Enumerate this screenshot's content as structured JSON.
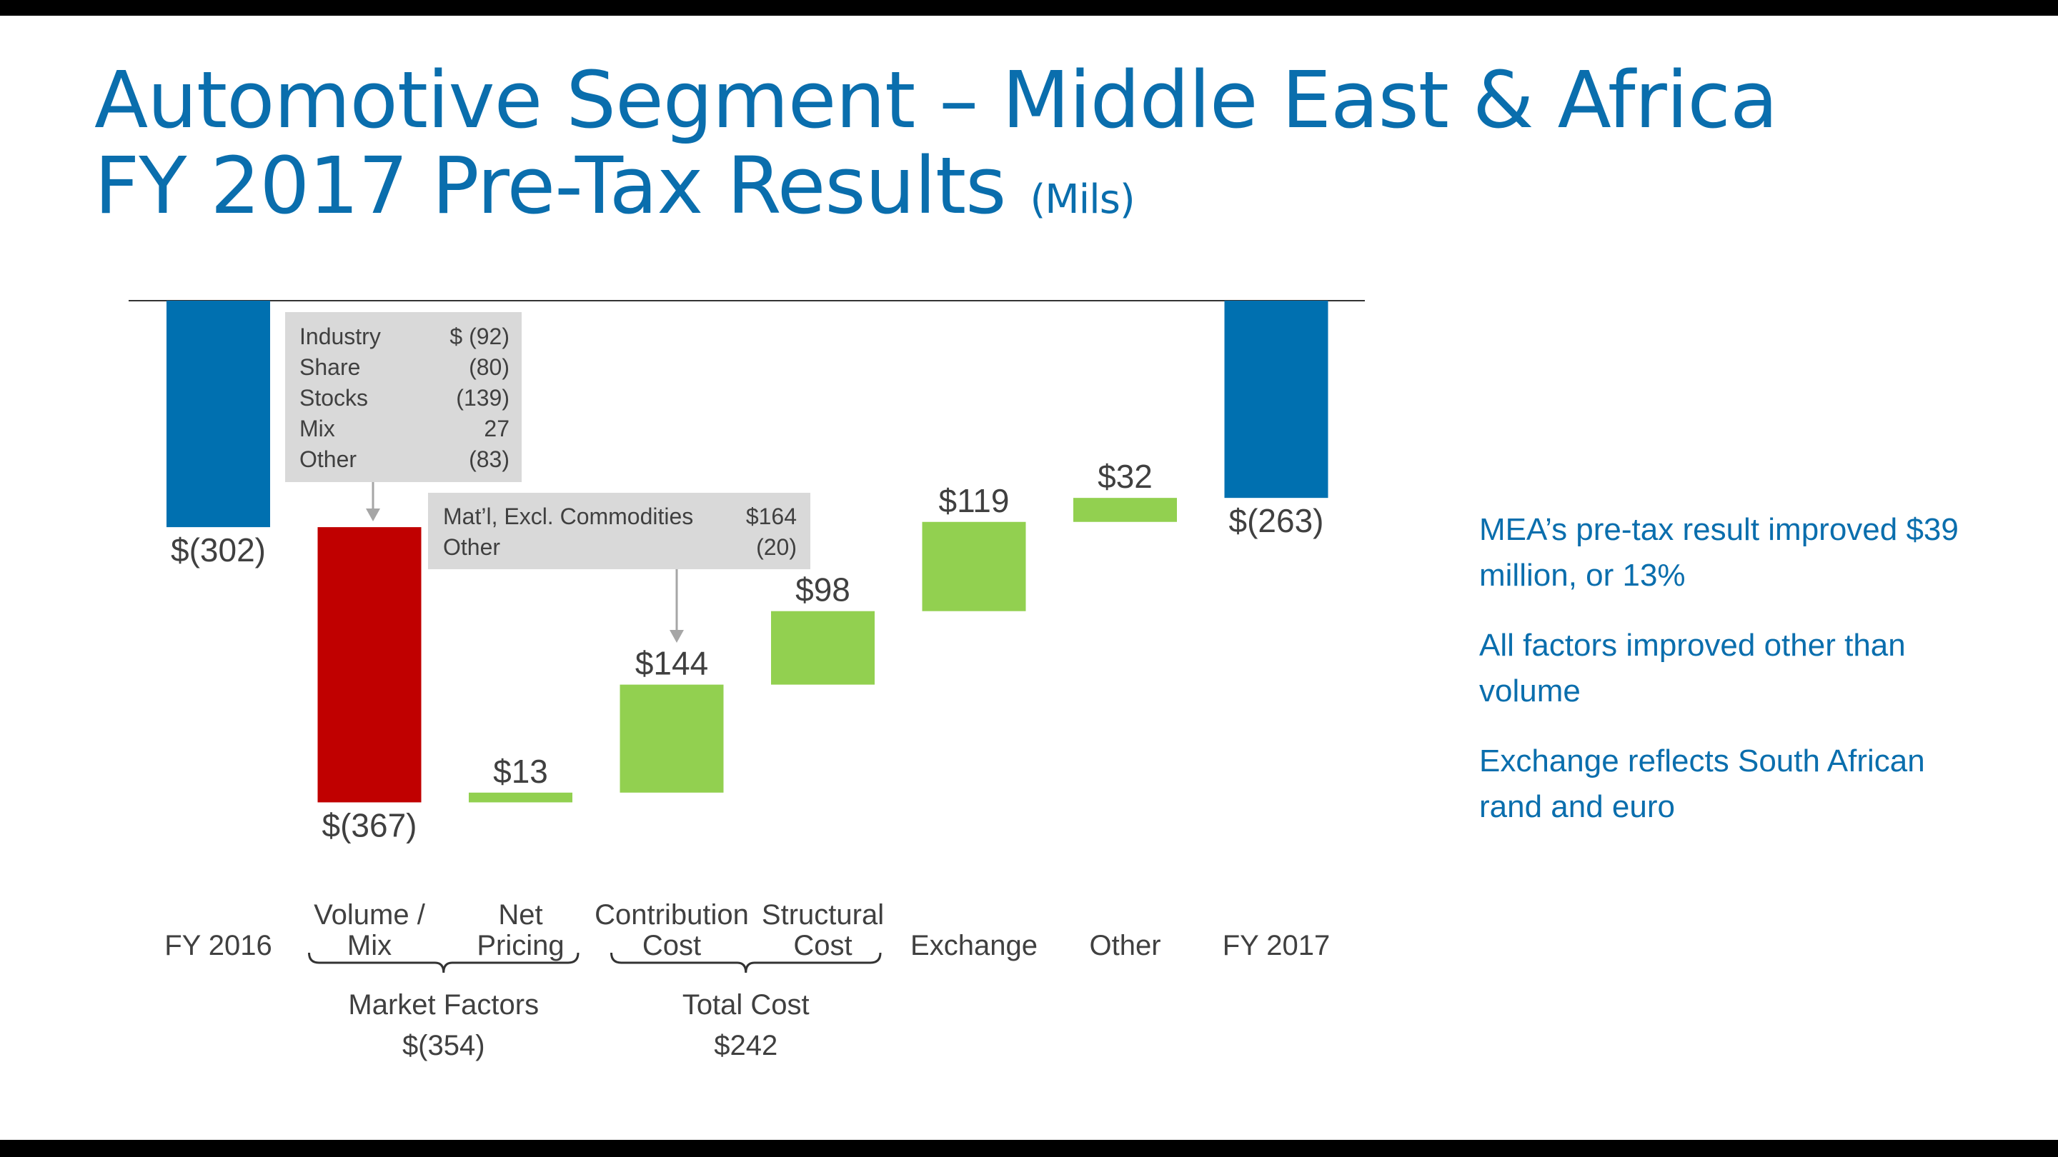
{
  "title": {
    "line1": "Automotive Segment – Middle East & Africa",
    "line2": "FY 2017 Pre-Tax Results",
    "unit": "(Mils)"
  },
  "colors": {
    "title": "#0a6ead",
    "total_bar": "#0070b0",
    "negative_bar": "#c00000",
    "positive_bar": "#92d050",
    "callout_bg": "#d9d9d9",
    "text": "#404040"
  },
  "chart_data": {
    "type": "waterfall",
    "baseline_value": 0,
    "ylim": [
      -700,
      0
    ],
    "categories": [
      "FY 2016",
      "Volume / Mix",
      "Net Pricing",
      "Contribution Cost",
      "Structural Cost",
      "Exchange",
      "Other",
      "FY 2017"
    ],
    "bars": [
      {
        "category": "FY 2016",
        "kind": "total",
        "value": -302,
        "label": "$(302)"
      },
      {
        "category": "Volume / Mix",
        "kind": "delta",
        "value": -367,
        "label": "$(367)"
      },
      {
        "category": "Net Pricing",
        "kind": "delta",
        "value": 13,
        "label": "$13"
      },
      {
        "category": "Contribution Cost",
        "kind": "delta",
        "value": 144,
        "label": "$144"
      },
      {
        "category": "Structural Cost",
        "kind": "delta",
        "value": 98,
        "label": "$98"
      },
      {
        "category": "Exchange",
        "kind": "delta",
        "value": 119,
        "label": "$119"
      },
      {
        "category": "Other",
        "kind": "delta",
        "value": 32,
        "label": "$32"
      },
      {
        "category": "FY 2017",
        "kind": "total",
        "value": -263,
        "label": "$(263)"
      }
    ],
    "category_labels": [
      [
        "FY 2016"
      ],
      [
        "Volume /",
        "Mix"
      ],
      [
        "Net",
        "Pricing"
      ],
      [
        "Contribution",
        "Cost"
      ],
      [
        "Structural",
        "Cost"
      ],
      [
        "Exchange"
      ],
      [
        "Other"
      ],
      [
        "FY 2017"
      ]
    ],
    "groups": [
      {
        "label": "Market Factors",
        "value": "$(354)",
        "from": 1,
        "to": 2
      },
      {
        "label": "Total Cost",
        "value": "$242",
        "from": 3,
        "to": 4
      }
    ],
    "callouts": [
      {
        "points_to": 1,
        "rows": [
          [
            "Industry",
            "$ (92)"
          ],
          [
            "Share",
            "(80)"
          ],
          [
            "Stocks",
            "(139)"
          ],
          [
            "Mix",
            "27"
          ],
          [
            "Other",
            "(83)"
          ]
        ]
      },
      {
        "points_to": 3,
        "rows": [
          [
            "Mat’l, Excl. Commodities",
            "$164"
          ],
          [
            "Other",
            "(20)"
          ]
        ]
      }
    ]
  },
  "bullets": [
    "MEA’s pre-tax result improved $39 million, or 13%",
    "All factors improved other than volume",
    "Exchange reflects South African rand and euro"
  ]
}
